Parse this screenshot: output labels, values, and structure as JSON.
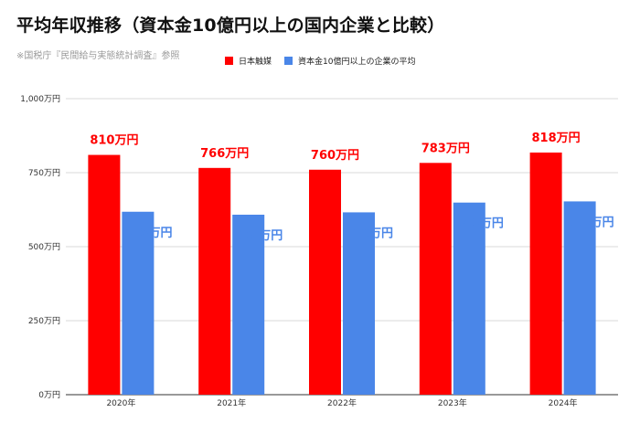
{
  "header": {
    "title": "平均年収推移（資本金10億円以上の国内企業と比較）",
    "subtitle": "※国税庁『民間給与実態統計調査』参照"
  },
  "chart_data": {
    "type": "bar",
    "categories": [
      "2020年",
      "2021年",
      "2022年",
      "2023年",
      "2024年"
    ],
    "series": [
      {
        "name": "日本触媒",
        "values": [
          810,
          766,
          760,
          783,
          818
        ],
        "labels": [
          "810万円",
          "766万円",
          "760万円",
          "783万円",
          "818万円"
        ],
        "color": "#ff0000"
      },
      {
        "name": "資本金10億円以上の企業の平均",
        "values": [
          618,
          608,
          616,
          649,
          653
        ],
        "labels": [
          "618万円",
          "608万円",
          "616万円",
          "649万円",
          "653万円"
        ],
        "color": "#4a86e8"
      }
    ],
    "y_ticks": [
      {
        "value": 0,
        "label": "0万円"
      },
      {
        "value": 250,
        "label": "250万円"
      },
      {
        "value": 500,
        "label": "500万円"
      },
      {
        "value": 750,
        "label": "750万円"
      },
      {
        "value": 1000,
        "label": "1,000万円"
      }
    ],
    "ylim": [
      0,
      1000
    ],
    "grid": true,
    "legend_position": "top",
    "label_colors": {
      "series_0": "#ff0000",
      "series_1": "#4a86e8"
    }
  }
}
